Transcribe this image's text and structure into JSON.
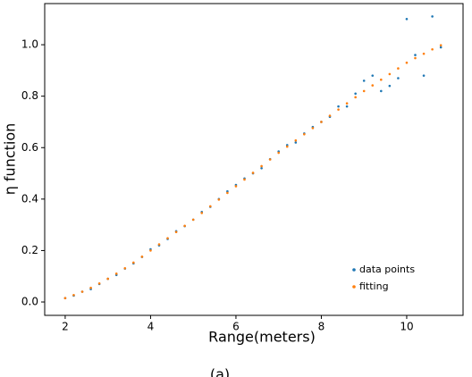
{
  "chart_data": {
    "type": "scatter",
    "xlabel": "Range(meters)",
    "ylabel": "η function",
    "caption": "(a)",
    "x": [
      2.0,
      2.2,
      2.4,
      2.6,
      2.8,
      3.0,
      3.2,
      3.4,
      3.6,
      3.8,
      4.0,
      4.2,
      4.4,
      4.6,
      4.8,
      5.0,
      5.2,
      5.4,
      5.6,
      5.8,
      6.0,
      6.2,
      6.4,
      6.6,
      6.8,
      7.0,
      7.2,
      7.4,
      7.6,
      7.8,
      8.0,
      8.2,
      8.4,
      8.6,
      8.8,
      9.0,
      9.2,
      9.4,
      9.6,
      9.8,
      10.0,
      10.2,
      10.4,
      10.6,
      10.8
    ],
    "series": [
      {
        "name": "data points",
        "color": "#1f77b4",
        "values": [
          0.015,
          0.025,
          0.04,
          0.05,
          0.07,
          0.09,
          0.105,
          0.13,
          0.15,
          0.175,
          0.205,
          0.22,
          0.245,
          0.275,
          0.295,
          0.32,
          0.35,
          0.37,
          0.4,
          0.43,
          0.455,
          0.48,
          0.5,
          0.52,
          0.555,
          0.585,
          0.61,
          0.62,
          0.655,
          0.68,
          0.7,
          0.72,
          0.76,
          0.76,
          0.81,
          0.86,
          0.88,
          0.82,
          0.84,
          0.87,
          1.1,
          0.96,
          0.88,
          1.11,
          0.99
        ]
      },
      {
        "name": "fitting",
        "color": "#ff7f0e",
        "values": [
          0.015,
          0.027,
          0.04,
          0.055,
          0.072,
          0.09,
          0.11,
          0.131,
          0.153,
          0.176,
          0.2,
          0.224,
          0.248,
          0.272,
          0.296,
          0.32,
          0.346,
          0.372,
          0.398,
          0.424,
          0.45,
          0.476,
          0.502,
          0.528,
          0.554,
          0.58,
          0.604,
          0.628,
          0.652,
          0.676,
          0.7,
          0.724,
          0.748,
          0.772,
          0.796,
          0.82,
          0.842,
          0.864,
          0.886,
          0.908,
          0.93,
          0.948,
          0.965,
          0.982,
          0.998
        ]
      }
    ],
    "xlim": [
      1.52,
      11.32
    ],
    "ylim": [
      -0.052,
      1.16
    ],
    "xticks": [
      2,
      4,
      6,
      8,
      10
    ],
    "yticks": [
      {
        "value": 0,
        "label": "0.0"
      },
      0.2,
      0.4,
      0.6,
      0.8,
      {
        "value": 1,
        "label": "1.0"
      }
    ],
    "legend": "lower right"
  }
}
